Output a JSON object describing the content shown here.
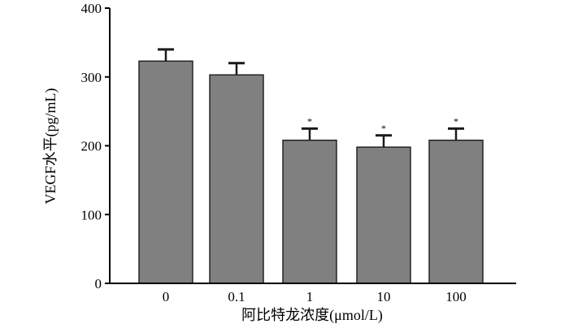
{
  "chart_data": {
    "type": "bar",
    "title": "",
    "xlabel": "阿比特龙浓度(μmol/L)",
    "ylabel": "VEGF水平(pg/mL)",
    "categories": [
      "0",
      "0.1",
      "1",
      "10",
      "100"
    ],
    "values": [
      323,
      303,
      208,
      198,
      208
    ],
    "error_upper": [
      340,
      320,
      225,
      215,
      225
    ],
    "annotations": [
      "",
      "",
      "*",
      "*",
      "*"
    ],
    "ylim": [
      0,
      400
    ],
    "yticks": [
      "0",
      "100",
      "200",
      "300",
      "400"
    ],
    "grid": false,
    "legend": "none",
    "colors": {
      "bar_fill": "#808080",
      "bar_stroke": "#1a1a1a",
      "axis": "#000000"
    }
  }
}
